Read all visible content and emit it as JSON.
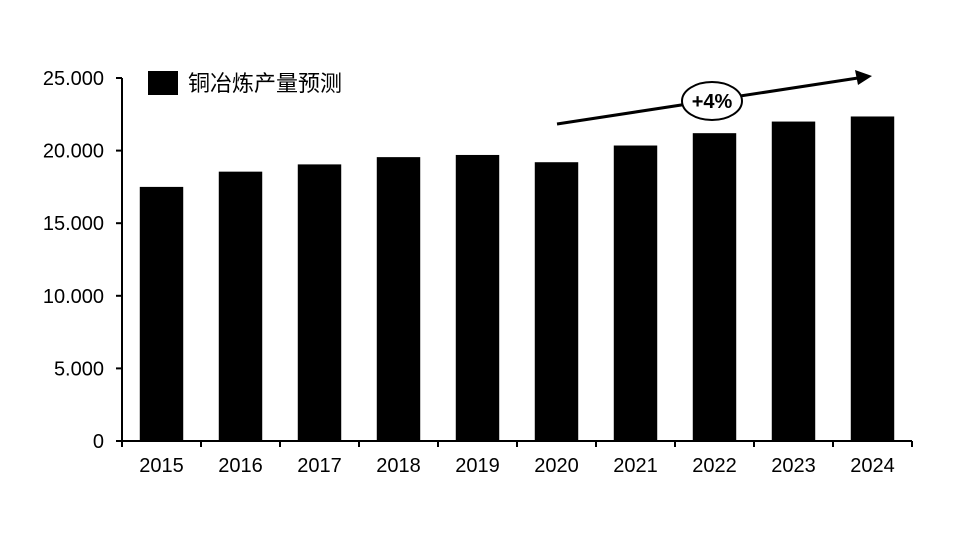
{
  "chart_data": {
    "type": "bar",
    "title": "",
    "xlabel": "",
    "ylabel": "",
    "categories": [
      "2015",
      "2016",
      "2017",
      "2018",
      "2019",
      "2020",
      "2021",
      "2022",
      "2023",
      "2024"
    ],
    "series": [
      {
        "name": "铜冶炼产量预测",
        "color": "#000000",
        "values": [
          17500,
          18550,
          19050,
          19550,
          19700,
          19200,
          20350,
          21200,
          22000,
          22350
        ]
      }
    ],
    "y_ticks": [
      "0",
      "5.000",
      "10.000",
      "15.000",
      "20.000",
      "25.000"
    ],
    "y_tick_values": [
      0,
      5000,
      10000,
      15000,
      20000,
      25000
    ],
    "ylim": [
      0,
      25000
    ],
    "grid": false,
    "legend_position": "top-left",
    "annotation": {
      "label": "+4%",
      "type": "growth-arrow"
    }
  }
}
